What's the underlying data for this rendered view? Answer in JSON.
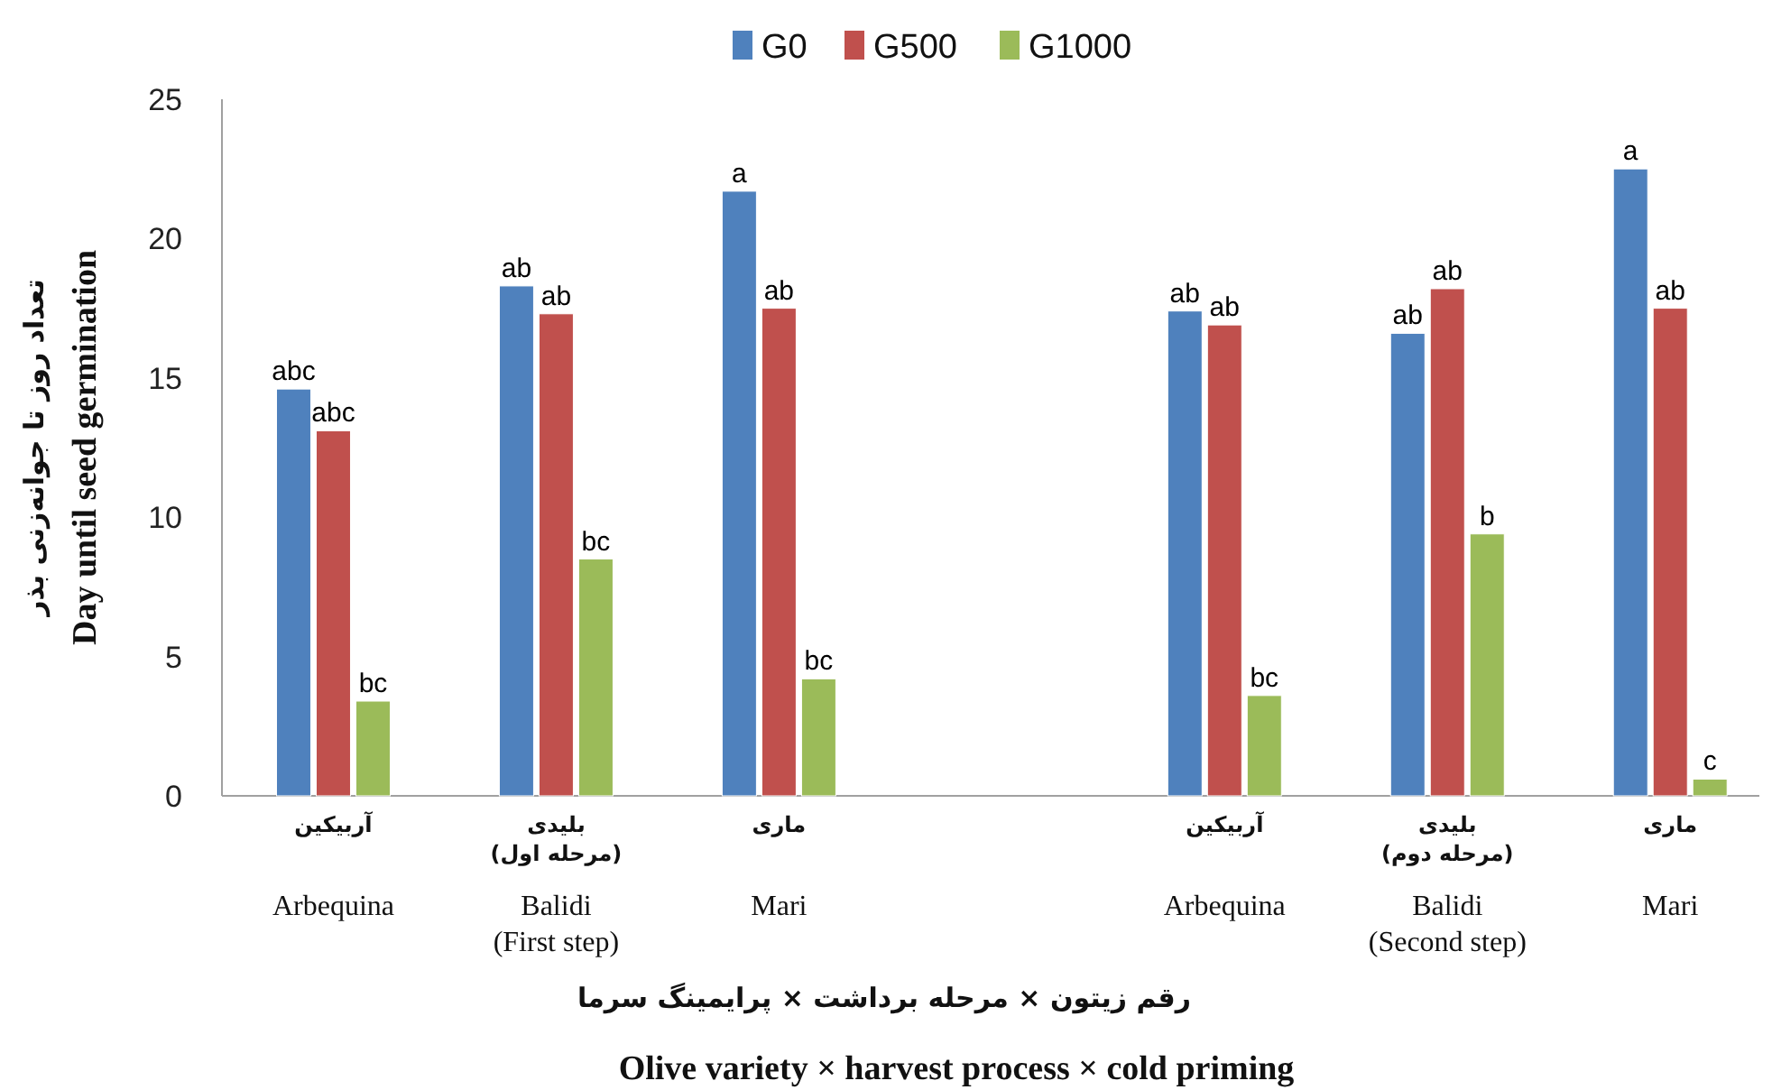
{
  "chart_data": {
    "type": "bar",
    "xlabel": "Olive variety × harvest process × cold priming",
    "ylabel": "Day until seed germination",
    "categories": [
      "Arbequina",
      "Balidi (First step)",
      "Mari",
      null,
      "Arbequina",
      "Balidi (Second step)",
      "Mari"
    ],
    "series": [
      {
        "name": "G0",
        "color": "#4f81bd",
        "values": [
          14.6,
          18.3,
          21.7,
          null,
          17.4,
          16.6,
          22.5
        ],
        "value_labels": [
          "abc",
          "ab",
          "a",
          null,
          "ab",
          "ab",
          "a"
        ]
      },
      {
        "name": "G500",
        "color": "#c0504d",
        "values": [
          13.1,
          17.3,
          17.5,
          null,
          16.9,
          18.2,
          17.5
        ],
        "value_labels": [
          "abc",
          "ab",
          "ab",
          null,
          "ab",
          "ab",
          "ab"
        ]
      },
      {
        "name": "G1000",
        "color": "#9bbb59",
        "values": [
          3.4,
          8.5,
          4.2,
          null,
          3.6,
          9.4,
          0.6
        ],
        "value_labels": [
          "bc",
          "bc",
          "bc",
          null,
          "bc",
          "b",
          "c"
        ]
      }
    ],
    "annotations": [
      "آربیکین",
      "بلیدی (مرحله اول)",
      "ماری",
      "آربیکین",
      "بلیدی (مرحله دوم)",
      "ماری",
      "تعداد روز تا جوانه‌زنی بذر",
      "رقم  زیتون × مرحله برداشت × پرایمینگ سرما"
    ],
    "ylim": [
      0,
      25
    ],
    "yticks": [
      0,
      5,
      10,
      15,
      20,
      25
    ],
    "grid": false,
    "legend": "top"
  }
}
